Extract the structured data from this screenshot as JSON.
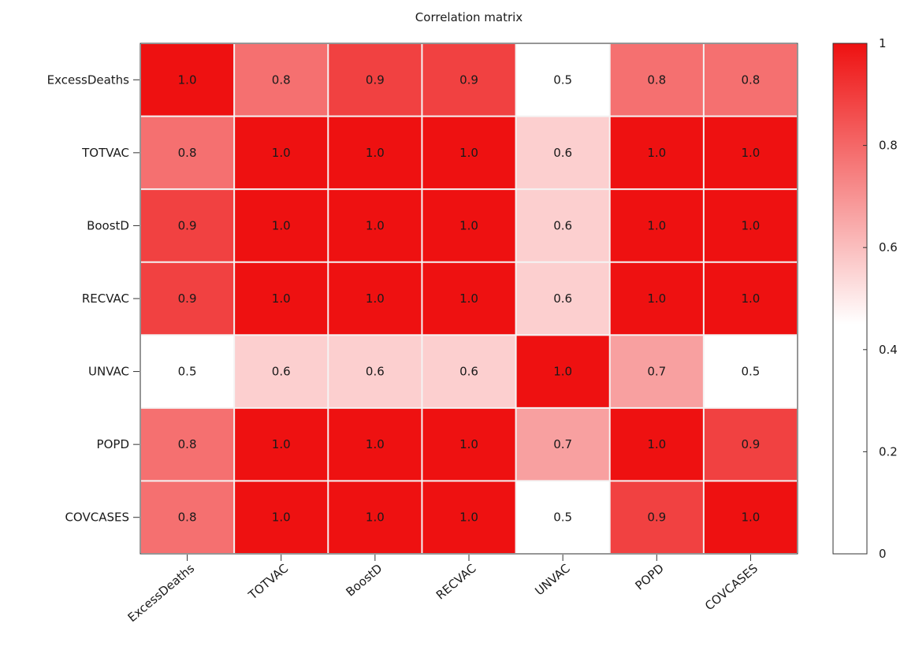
{
  "chart_data": {
    "type": "heatmap",
    "title": "Correlation matrix",
    "row_labels": [
      "ExcessDeaths",
      "TOTVAC",
      "BoostD",
      "RECVAC",
      "UNVAC",
      "POPD",
      "COVCASES"
    ],
    "col_labels": [
      "ExcessDeaths",
      "TOTVAC",
      "BoostD",
      "RECVAC",
      "UNVAC",
      "POPD",
      "COVCASES"
    ],
    "values": [
      [
        1.0,
        0.8,
        0.9,
        0.9,
        0.5,
        0.8,
        0.8
      ],
      [
        0.8,
        1.0,
        1.0,
        1.0,
        0.6,
        1.0,
        1.0
      ],
      [
        0.9,
        1.0,
        1.0,
        1.0,
        0.6,
        1.0,
        1.0
      ],
      [
        0.9,
        1.0,
        1.0,
        1.0,
        0.6,
        1.0,
        1.0
      ],
      [
        0.5,
        0.6,
        0.6,
        0.6,
        1.0,
        0.7,
        0.5
      ],
      [
        0.8,
        1.0,
        1.0,
        1.0,
        0.7,
        1.0,
        0.9
      ],
      [
        0.8,
        1.0,
        1.0,
        1.0,
        0.5,
        0.9,
        1.0
      ]
    ],
    "colorbar": {
      "ticks": [
        0,
        0.2,
        0.4,
        0.6,
        0.8,
        1
      ],
      "tick_labels": [
        "0",
        "0.2",
        "0.4",
        "0.6",
        "0.8",
        "1"
      ],
      "range": [
        0,
        1
      ],
      "low_color": "#ffffff",
      "high_color": "#ee1111"
    },
    "colorscale_note_value": 0.5
  }
}
